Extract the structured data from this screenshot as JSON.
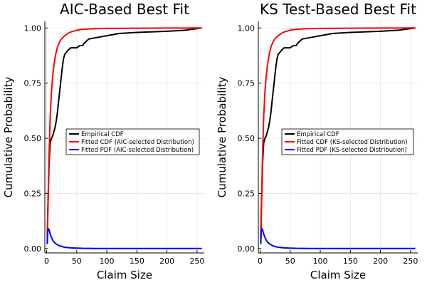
{
  "chart_data": [
    {
      "type": "line",
      "title": "AIC-Based Best Fit",
      "xlabel": "Claim Size",
      "ylabel": "Cumulative Probability",
      "xlim": [
        -3,
        262
      ],
      "ylim": [
        -0.02,
        1.03
      ],
      "xticks": [
        0,
        50,
        100,
        150,
        200,
        250
      ],
      "xtick_labels": [
        "0",
        "50",
        "100",
        "150",
        "200",
        "250"
      ],
      "yticks": [
        0,
        0.25,
        0.5,
        0.75,
        1.0
      ],
      "ytick_labels": [
        "0.00",
        "0.25",
        "0.50",
        "0.75",
        "1.00"
      ],
      "grid": true,
      "legend_position": "right-center",
      "series": [
        {
          "name": "Empirical CDF",
          "color": "#000000",
          "x": [
            1,
            2,
            3,
            4,
            5,
            6,
            7,
            8,
            10,
            12,
            14,
            16,
            18,
            20,
            22,
            24,
            26,
            28,
            30,
            33,
            36,
            40,
            45,
            50,
            55,
            60,
            62,
            70,
            80,
            90,
            100,
            110,
            120,
            150,
            200,
            230,
            258
          ],
          "y": [
            0.03,
            0.18,
            0.28,
            0.38,
            0.44,
            0.48,
            0.49,
            0.5,
            0.51,
            0.53,
            0.55,
            0.58,
            0.62,
            0.67,
            0.72,
            0.77,
            0.82,
            0.86,
            0.88,
            0.89,
            0.9,
            0.91,
            0.91,
            0.91,
            0.92,
            0.92,
            0.93,
            0.95,
            0.955,
            0.96,
            0.965,
            0.97,
            0.975,
            0.98,
            0.985,
            0.99,
            1.0
          ]
        },
        {
          "name": "Fitted CDF (AIC-selected Distribution)",
          "color": "#ff0000",
          "x": [
            1,
            2,
            3,
            4,
            5,
            6,
            7,
            8,
            10,
            12,
            15,
            18,
            22,
            26,
            30,
            35,
            40,
            50,
            60,
            80,
            100,
            150,
            200,
            258
          ],
          "y": [
            0.03,
            0.15,
            0.3,
            0.42,
            0.52,
            0.6,
            0.66,
            0.71,
            0.78,
            0.83,
            0.88,
            0.915,
            0.94,
            0.955,
            0.965,
            0.975,
            0.982,
            0.99,
            0.994,
            0.997,
            0.998,
            0.999,
            0.9995,
            1.0
          ]
        },
        {
          "name": "Fitted PDF (AIC-selected Distribution)",
          "color": "#0000ff",
          "x": [
            1,
            2,
            3,
            4,
            5,
            6,
            8,
            10,
            12,
            15,
            20,
            25,
            30,
            40,
            50,
            60,
            80,
            100,
            150,
            200,
            258
          ],
          "y": [
            0.02,
            0.08,
            0.09,
            0.085,
            0.075,
            0.065,
            0.05,
            0.038,
            0.03,
            0.022,
            0.014,
            0.009,
            0.006,
            0.003,
            0.002,
            0.001,
            0.0005,
            0.0002,
            0.0001,
            0.0,
            0.0
          ]
        }
      ]
    },
    {
      "type": "line",
      "title": "KS Test-Based Best Fit",
      "xlabel": "Claim Size",
      "ylabel": "Cumulative Probability",
      "xlim": [
        -3,
        262
      ],
      "ylim": [
        -0.02,
        1.03
      ],
      "xticks": [
        0,
        50,
        100,
        150,
        200,
        250
      ],
      "xtick_labels": [
        "0",
        "50",
        "100",
        "150",
        "200",
        "250"
      ],
      "yticks": [
        0,
        0.25,
        0.5,
        0.75,
        1.0
      ],
      "ytick_labels": [
        "0.00",
        "0.25",
        "0.50",
        "0.75",
        "1.00"
      ],
      "grid": true,
      "legend_position": "right-center",
      "series": [
        {
          "name": "Empirical CDF",
          "color": "#000000",
          "x": [
            1,
            2,
            3,
            4,
            5,
            6,
            7,
            8,
            10,
            12,
            14,
            16,
            18,
            20,
            22,
            24,
            26,
            28,
            30,
            33,
            36,
            40,
            45,
            50,
            55,
            60,
            62,
            70,
            80,
            90,
            100,
            110,
            120,
            150,
            200,
            230,
            258
          ],
          "y": [
            0.03,
            0.18,
            0.28,
            0.38,
            0.44,
            0.48,
            0.49,
            0.5,
            0.51,
            0.53,
            0.55,
            0.58,
            0.62,
            0.67,
            0.72,
            0.77,
            0.82,
            0.86,
            0.88,
            0.89,
            0.9,
            0.91,
            0.91,
            0.91,
            0.92,
            0.92,
            0.93,
            0.95,
            0.955,
            0.96,
            0.965,
            0.97,
            0.975,
            0.98,
            0.985,
            0.99,
            1.0
          ]
        },
        {
          "name": "Fitted CDF (KS-selected Distribution)",
          "color": "#ff0000",
          "x": [
            1,
            2,
            3,
            4,
            5,
            6,
            7,
            8,
            10,
            12,
            15,
            18,
            22,
            26,
            30,
            35,
            40,
            50,
            60,
            80,
            100,
            150,
            200,
            258
          ],
          "y": [
            0.03,
            0.15,
            0.3,
            0.42,
            0.52,
            0.6,
            0.66,
            0.71,
            0.78,
            0.83,
            0.88,
            0.915,
            0.94,
            0.955,
            0.965,
            0.975,
            0.982,
            0.99,
            0.994,
            0.997,
            0.998,
            0.999,
            0.9995,
            1.0
          ]
        },
        {
          "name": "Fitted PDF (KS-selected Distribution)",
          "color": "#0000ff",
          "x": [
            1,
            2,
            3,
            4,
            5,
            6,
            8,
            10,
            12,
            15,
            20,
            25,
            30,
            40,
            50,
            60,
            80,
            100,
            150,
            200,
            258
          ],
          "y": [
            0.02,
            0.08,
            0.09,
            0.085,
            0.075,
            0.065,
            0.05,
            0.038,
            0.03,
            0.022,
            0.014,
            0.009,
            0.006,
            0.003,
            0.002,
            0.001,
            0.0005,
            0.0002,
            0.0001,
            0.0,
            0.0
          ]
        }
      ]
    }
  ]
}
